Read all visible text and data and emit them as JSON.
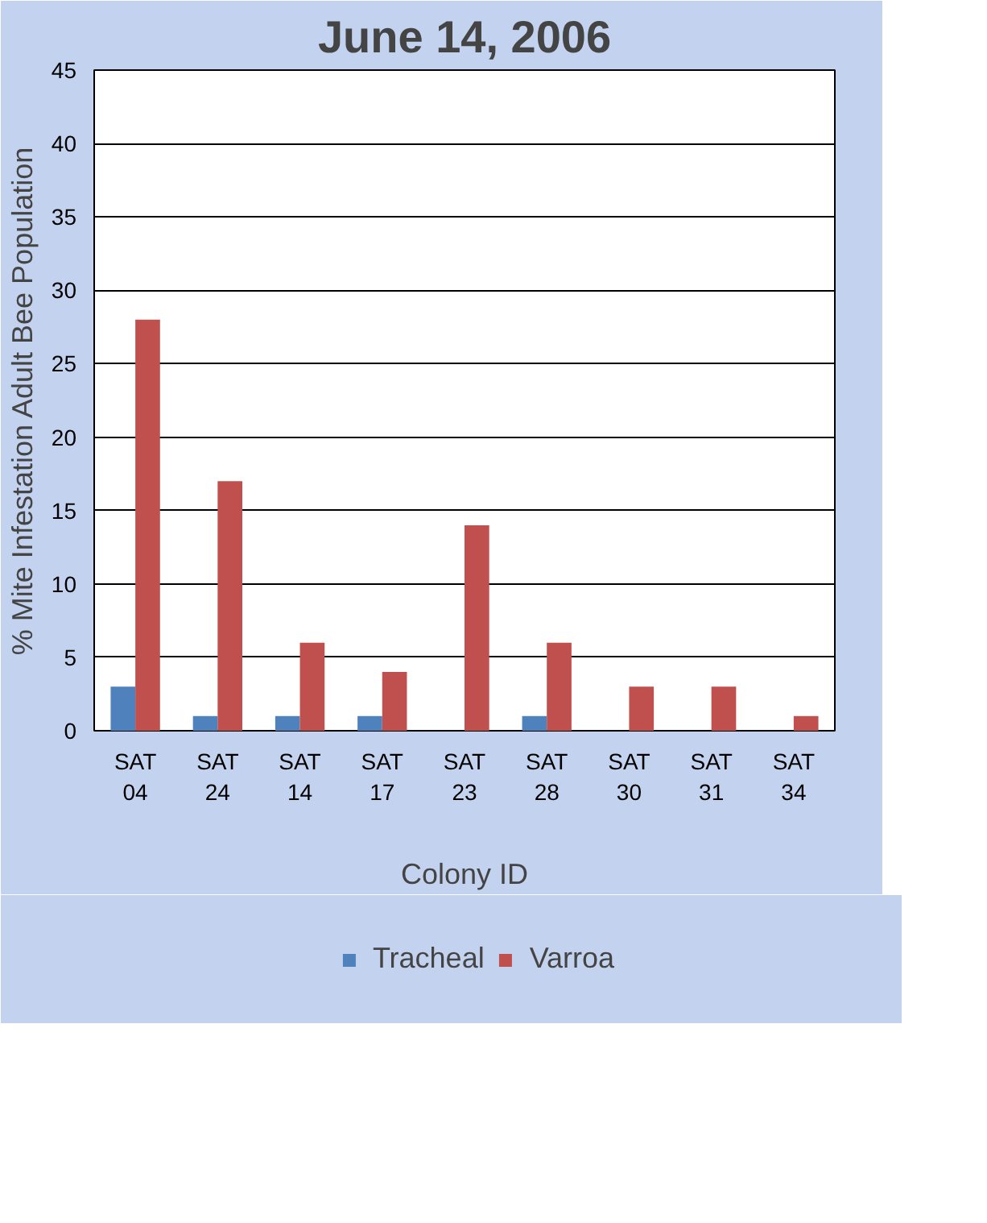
{
  "chart_data": {
    "type": "bar",
    "title": "June 14, 2006",
    "xlabel": "Colony ID",
    "ylabel": "% Mite Infestation Adult Bee Population",
    "categories": [
      "SAT 04",
      "SAT 24",
      "SAT 14",
      "SAT 17",
      "SAT 23",
      "SAT 28",
      "SAT 30",
      "SAT 31",
      "SAT 34"
    ],
    "series": [
      {
        "name": "Tracheal",
        "color": "#4f81bd",
        "values": [
          3,
          1,
          1,
          1,
          0,
          1,
          0,
          0,
          0
        ]
      },
      {
        "name": "Varroa",
        "color": "#c0504d",
        "values": [
          28,
          17,
          6,
          4,
          14,
          6,
          3,
          3,
          1
        ]
      }
    ],
    "ylim": [
      0,
      45
    ],
    "yticks": [
      0,
      5,
      10,
      15,
      20,
      25,
      30,
      35,
      40,
      45
    ],
    "grid": "y",
    "legend": "bottom"
  }
}
